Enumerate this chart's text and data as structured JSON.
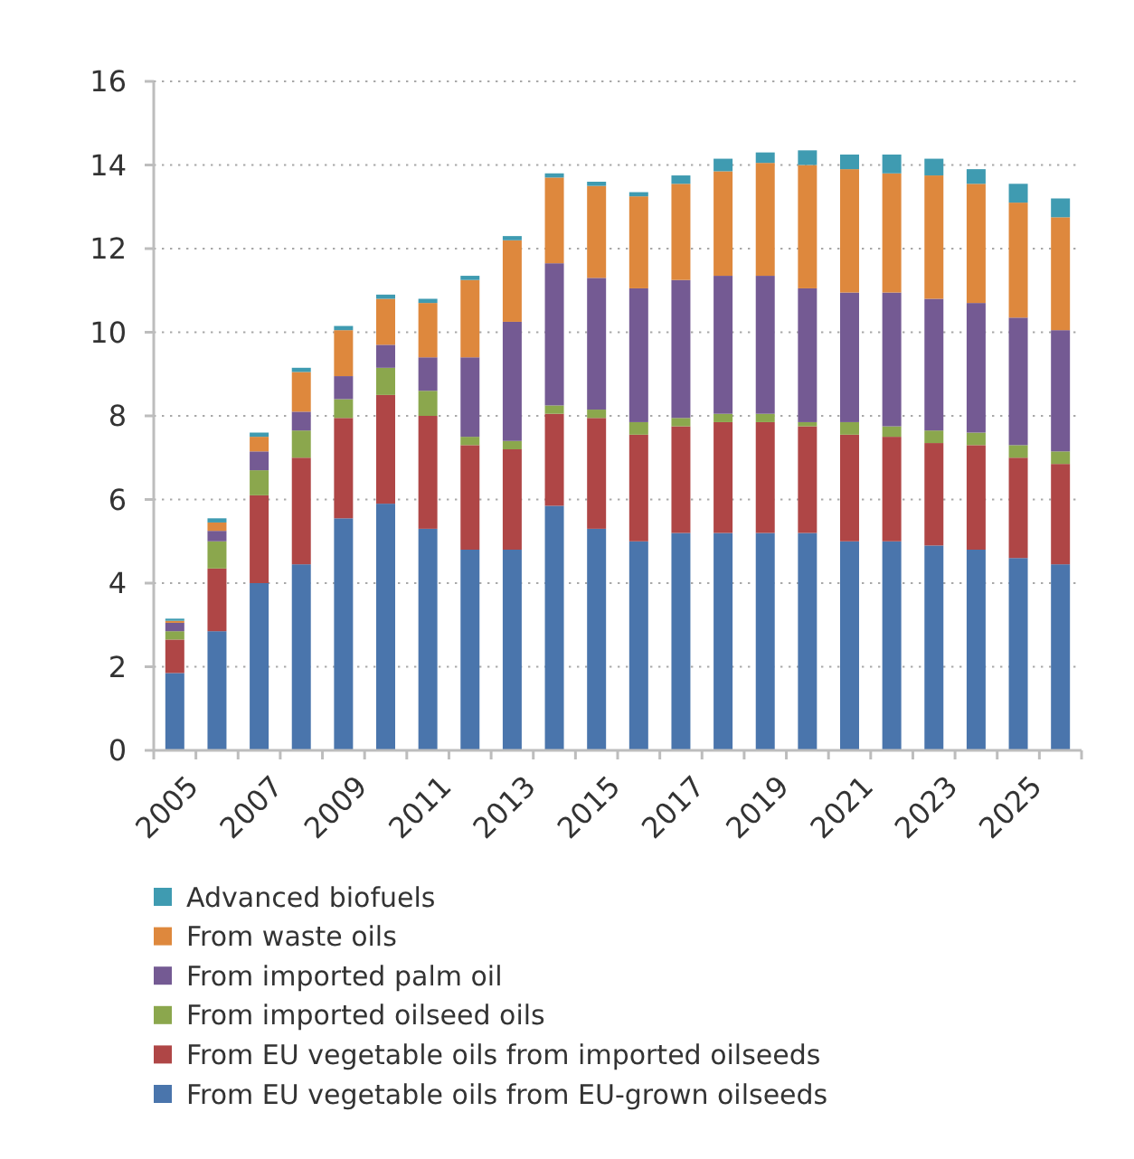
{
  "chart_data": {
    "type": "bar",
    "stacked": true,
    "categories": [
      "2005",
      null,
      "2007",
      null,
      "2009",
      null,
      "2011",
      null,
      "2013",
      null,
      "2015",
      null,
      "2017",
      null,
      "2019",
      null,
      "2021",
      null,
      "2023",
      null,
      "2025",
      null
    ],
    "series": [
      {
        "name": "From EU vegetable oils from EU-grown oilseeds",
        "color": "#4a75ac",
        "values": [
          1.85,
          2.85,
          4.0,
          4.45,
          5.55,
          5.9,
          5.3,
          4.8,
          4.8,
          5.85,
          5.3,
          5.0,
          5.2,
          5.2,
          5.2,
          5.2,
          5.0,
          5.0,
          4.9,
          4.8,
          4.6,
          4.45
        ]
      },
      {
        "name": "From EU vegetable oils from imported oilseeds",
        "color": "#af4646",
        "values": [
          0.8,
          1.5,
          2.1,
          2.55,
          2.4,
          2.6,
          2.7,
          2.5,
          2.4,
          2.2,
          2.65,
          2.55,
          2.55,
          2.65,
          2.65,
          2.55,
          2.55,
          2.5,
          2.45,
          2.5,
          2.4,
          2.4
        ]
      },
      {
        "name": "From imported oilseed oils",
        "color": "#8ba74d",
        "values": [
          0.2,
          0.65,
          0.6,
          0.65,
          0.45,
          0.65,
          0.6,
          0.2,
          0.2,
          0.2,
          0.2,
          0.3,
          0.2,
          0.2,
          0.2,
          0.1,
          0.3,
          0.25,
          0.3,
          0.3,
          0.3,
          0.3
        ]
      },
      {
        "name": "From imported palm oil",
        "color": "#745a93",
        "values": [
          0.2,
          0.25,
          0.45,
          0.45,
          0.55,
          0.55,
          0.8,
          1.9,
          2.85,
          3.4,
          3.15,
          3.2,
          3.3,
          3.3,
          3.3,
          3.2,
          3.1,
          3.2,
          3.15,
          3.1,
          3.05,
          2.9
        ]
      },
      {
        "name": "From waste oils",
        "color": "#de883d",
        "values": [
          0.05,
          0.2,
          0.35,
          0.95,
          1.1,
          1.1,
          1.3,
          1.85,
          1.95,
          2.05,
          2.2,
          2.2,
          2.3,
          2.5,
          2.7,
          2.95,
          2.95,
          2.85,
          2.95,
          2.85,
          2.75,
          2.7
        ]
      },
      {
        "name": "Advanced biofuels",
        "color": "#3f9bb1",
        "values": [
          0.05,
          0.1,
          0.1,
          0.1,
          0.1,
          0.1,
          0.1,
          0.1,
          0.1,
          0.1,
          0.1,
          0.1,
          0.2,
          0.3,
          0.25,
          0.35,
          0.35,
          0.45,
          0.4,
          0.35,
          0.45,
          0.45
        ]
      }
    ],
    "ylim": [
      0,
      16
    ],
    "yticks": [
      0,
      2,
      4,
      6,
      8,
      10,
      12,
      14,
      16
    ],
    "grid": "y",
    "legend": "bottom"
  }
}
